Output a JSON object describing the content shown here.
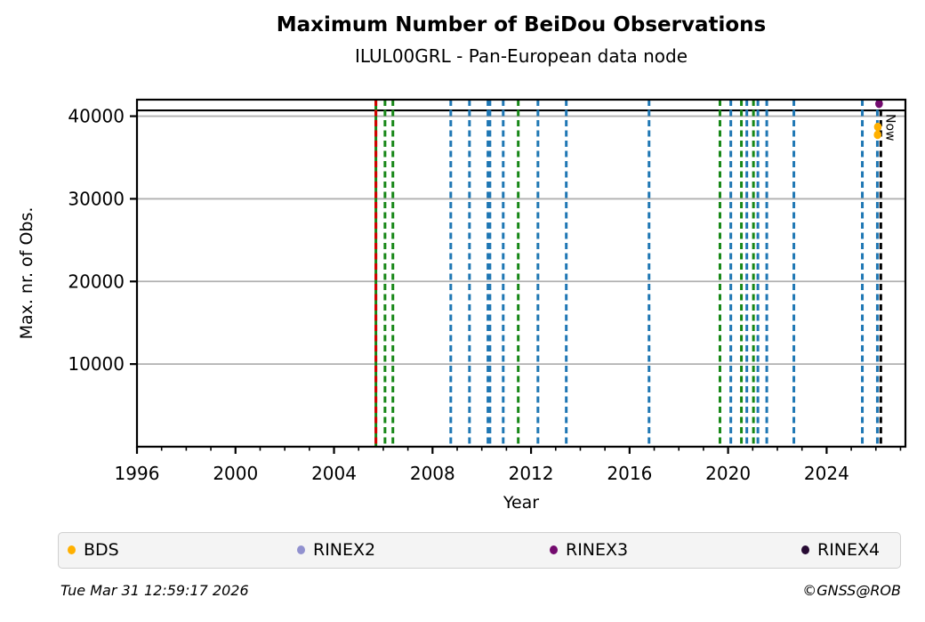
{
  "figure": {
    "footer_left": "Tue Mar 31 12:59:17 2026",
    "footer_right": "©GNSS@ROB"
  },
  "chart_data": {
    "type": "scatter",
    "title": "Maximum Number of BeiDou Observations",
    "subtitle": "ILUL00GRL - Pan-European data node",
    "xlabel": "Year",
    "ylabel": "Max. nr. of Obs.",
    "xlim": [
      1996,
      2027.2
    ],
    "ylim": [
      0,
      42000
    ],
    "x_major_ticks": [
      1996,
      2000,
      2004,
      2008,
      2012,
      2016,
      2020,
      2024
    ],
    "x_minor_step": 1,
    "y_major_ticks": [
      10000,
      20000,
      30000,
      40000
    ],
    "grid": "horizontal-only",
    "grid_color": "#b0b0b0",
    "legend_position": "bottom",
    "max_line": {
      "y": 40700,
      "color": "#000000",
      "style": "solid"
    },
    "now_line": {
      "x": 2026.2,
      "label": "Now",
      "color": "#000000",
      "style": "dashed"
    },
    "event_lines": [
      {
        "x": 2005.7,
        "color": "#178717",
        "style": "solid"
      },
      {
        "x": 2005.7,
        "color": "#d40000",
        "style": "dashed"
      },
      {
        "x": 2006.07,
        "color": "#178717",
        "style": "dashed"
      },
      {
        "x": 2006.39,
        "color": "#178717",
        "style": "dashed"
      },
      {
        "x": 2008.74,
        "color": "#1f77b4",
        "style": "dashed"
      },
      {
        "x": 2009.5,
        "color": "#1f77b4",
        "style": "dashed"
      },
      {
        "x": 2010.25,
        "color": "#1f77b4",
        "style": "dashed"
      },
      {
        "x": 2010.33,
        "color": "#1f77b4",
        "style": "dashed"
      },
      {
        "x": 2010.87,
        "color": "#1f77b4",
        "style": "dashed"
      },
      {
        "x": 2011.48,
        "color": "#178717",
        "style": "dashed"
      },
      {
        "x": 2012.28,
        "color": "#1f77b4",
        "style": "dashed"
      },
      {
        "x": 2013.43,
        "color": "#1f77b4",
        "style": "dashed"
      },
      {
        "x": 2016.79,
        "color": "#1f77b4",
        "style": "dashed"
      },
      {
        "x": 2019.67,
        "color": "#178717",
        "style": "dashed"
      },
      {
        "x": 2020.11,
        "color": "#1f77b4",
        "style": "dashed"
      },
      {
        "x": 2020.54,
        "color": "#178717",
        "style": "dashed"
      },
      {
        "x": 2020.76,
        "color": "#1f77b4",
        "style": "dashed"
      },
      {
        "x": 2021.03,
        "color": "#178717",
        "style": "dashed"
      },
      {
        "x": 2021.21,
        "color": "#1f77b4",
        "style": "dashed"
      },
      {
        "x": 2021.57,
        "color": "#1f77b4",
        "style": "dashed"
      },
      {
        "x": 2022.67,
        "color": "#1f77b4",
        "style": "dashed"
      },
      {
        "x": 2025.45,
        "color": "#1f77b4",
        "style": "dashed"
      },
      {
        "x": 2026.06,
        "color": "#1f77b4",
        "style": "dashed"
      }
    ],
    "series": [
      {
        "name": "BDS",
        "color": "#ffb000",
        "points": [
          {
            "x": 2026.08,
            "y": 38700
          },
          {
            "x": 2026.07,
            "y": 37750
          }
        ]
      },
      {
        "name": "RINEX2",
        "color": "#9191cf",
        "points": []
      },
      {
        "name": "RINEX3",
        "color": "#730a6e",
        "points": [
          {
            "x": 2026.13,
            "y": 41500
          }
        ]
      },
      {
        "name": "RINEX4",
        "color": "#270a33",
        "points": []
      }
    ]
  }
}
